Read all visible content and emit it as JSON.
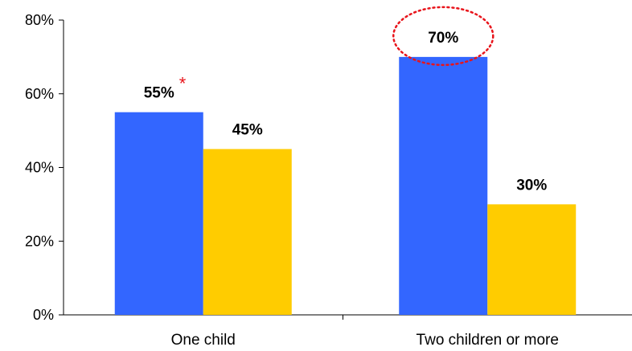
{
  "chart_data": {
    "type": "bar",
    "categories": [
      "One child",
      "Two children or more"
    ],
    "series": [
      {
        "values": [
          55,
          70
        ],
        "color": "#3366ff"
      },
      {
        "values": [
          45,
          30
        ],
        "color": "#ffcc00"
      }
    ],
    "data_labels": [
      [
        "55%",
        "70%"
      ],
      [
        "45%",
        "30%"
      ]
    ],
    "y_ticks": [
      {
        "value": 0,
        "label": "0%"
      },
      {
        "value": 20,
        "label": "20%"
      },
      {
        "value": 40,
        "label": "40%"
      },
      {
        "value": 60,
        "label": "60%"
      },
      {
        "value": 80,
        "label": "80%"
      }
    ],
    "ylim": [
      0,
      80
    ],
    "grid": false,
    "legend": "none",
    "title": "",
    "xlabel": "",
    "ylabel": "",
    "annotations": {
      "asterisk": {
        "text": "*",
        "series": 0,
        "category": 0,
        "color": "#e8141b"
      },
      "highlight": {
        "shape": "dotted-ellipse",
        "series": 0,
        "category": 1,
        "color": "#e8141b"
      }
    }
  }
}
